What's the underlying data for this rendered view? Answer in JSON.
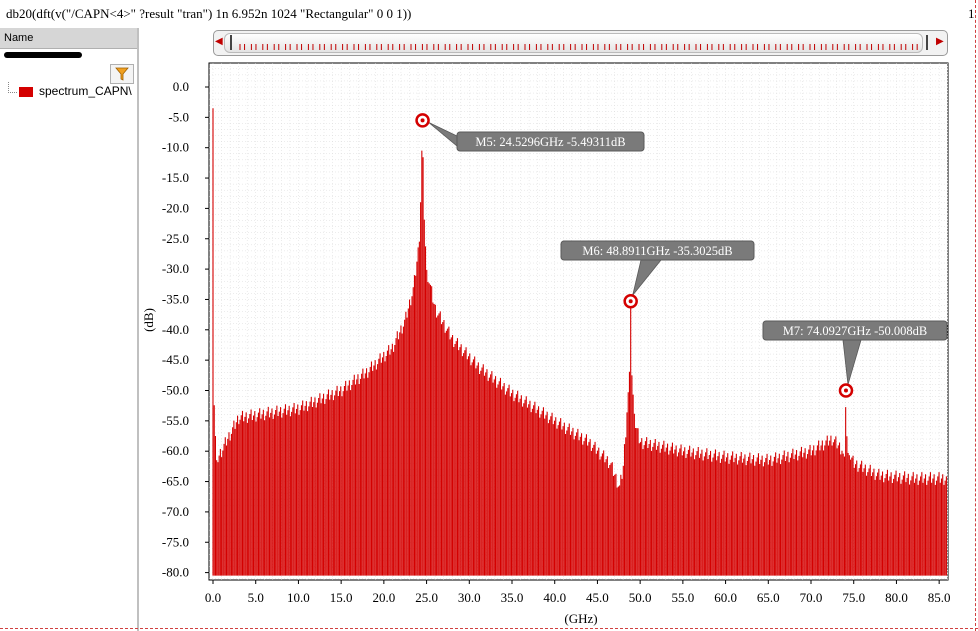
{
  "expression": "db20(dft(v(\"/CAPN<4>\" ?result \"tran\")  1n 6.952n 1024 \"Rectangular\" 0 0 1))",
  "corner_number": "1",
  "sidebar": {
    "header": "Name",
    "legend_label": "spectrum_CAPN\\",
    "legend_color": "#d40000",
    "filter_icon": "filter-funnel-icon"
  },
  "chart_data": {
    "type": "bar",
    "xlabel": "(GHz)",
    "ylabel": "(dB)",
    "xlim": [
      0,
      86
    ],
    "ylim": [
      -81,
      3.5
    ],
    "x_ticks": [
      "0.0",
      "5.0",
      "10.0",
      "15.0",
      "20.0",
      "25.0",
      "30.0",
      "35.0",
      "40.0",
      "45.0",
      "50.0",
      "55.0",
      "60.0",
      "65.0",
      "70.0",
      "75.0",
      "80.0",
      "85.0"
    ],
    "y_ticks": [
      "0.0",
      "-5.0",
      "-10.0",
      "-15.0",
      "-20.0",
      "-25.0",
      "-30.0",
      "-35.0",
      "-40.0",
      "-45.0",
      "-50.0",
      "-55.0",
      "-60.0",
      "-65.0",
      "-70.0",
      "-75.0",
      "-80.0"
    ],
    "grid": true,
    "series_color": "#d40000",
    "bin_spacing_ghz": 0.1438,
    "floor_db": -80.5,
    "key_points": [
      {
        "x": 0.0,
        "y": -3.5
      },
      {
        "x": 0.144,
        "y": -52.5
      },
      {
        "x": 0.288,
        "y": -57.5
      },
      {
        "x": 0.432,
        "y": -61.5
      },
      {
        "x": 3.0,
        "y": -54.5
      },
      {
        "x": 10.0,
        "y": -53.0
      },
      {
        "x": 15.0,
        "y": -50.0
      },
      {
        "x": 18.0,
        "y": -47.0
      },
      {
        "x": 21.0,
        "y": -43.0
      },
      {
        "x": 22.5,
        "y": -38.5
      },
      {
        "x": 23.5,
        "y": -33.0
      },
      {
        "x": 24.2,
        "y": -25.0
      },
      {
        "x": 24.3868,
        "y": -14.0
      },
      {
        "x": 24.5296,
        "y": -5.49311
      },
      {
        "x": 24.673,
        "y": -20.0
      },
      {
        "x": 25.0,
        "y": -30.0
      },
      {
        "x": 26.0,
        "y": -36.5
      },
      {
        "x": 28.0,
        "y": -41.5
      },
      {
        "x": 31.0,
        "y": -46.0
      },
      {
        "x": 35.0,
        "y": -50.5
      },
      {
        "x": 40.0,
        "y": -55.0
      },
      {
        "x": 44.0,
        "y": -58.5
      },
      {
        "x": 46.5,
        "y": -62.0
      },
      {
        "x": 47.6,
        "y": -66.0
      },
      {
        "x": 48.0,
        "y": -63.0
      },
      {
        "x": 48.4,
        "y": -55.0
      },
      {
        "x": 48.747,
        "y": -47.0
      },
      {
        "x": 48.8911,
        "y": -35.3025
      },
      {
        "x": 49.035,
        "y": -47.5
      },
      {
        "x": 49.4,
        "y": -55.5
      },
      {
        "x": 50.0,
        "y": -58.5
      },
      {
        "x": 55.0,
        "y": -60.0
      },
      {
        "x": 60.0,
        "y": -61.0
      },
      {
        "x": 65.0,
        "y": -61.5
      },
      {
        "x": 70.0,
        "y": -60.0
      },
      {
        "x": 72.5,
        "y": -58.0
      },
      {
        "x": 73.5,
        "y": -59.5
      },
      {
        "x": 73.949,
        "y": -61.0
      },
      {
        "x": 74.0927,
        "y": -50.008
      },
      {
        "x": 74.236,
        "y": -60.0
      },
      {
        "x": 75.0,
        "y": -62.0
      },
      {
        "x": 78.0,
        "y": -64.0
      },
      {
        "x": 82.0,
        "y": -64.5
      },
      {
        "x": 86.0,
        "y": -64.5
      }
    ],
    "markers": [
      {
        "id": "M5",
        "x": 24.5296,
        "y": -5.49311,
        "label": "M5: 24.5296GHz -5.49311dB"
      },
      {
        "id": "M6",
        "x": 48.8911,
        "y": -35.3025,
        "label": "M6: 48.8911GHz -35.3025dB"
      },
      {
        "id": "M7",
        "x": 74.0927,
        "y": -50.008,
        "label": "M7: 74.0927GHz -50.008dB"
      }
    ]
  }
}
